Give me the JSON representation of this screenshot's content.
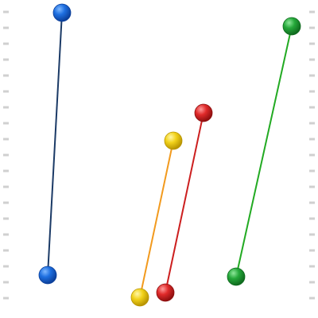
{
  "colors": {
    "background": "#ffffff",
    "edge_marks": "#d0d0d0",
    "blue": "#1e6fe0",
    "blue_line": "#1b3a66",
    "yellow": "#f2d21b",
    "yellow_line": "#f29a1e",
    "red": "#e02a2a",
    "red_line": "#cc1f1f",
    "green": "#25a83a",
    "green_line": "#22aa22"
  },
  "rods": [
    {
      "name": "blue-rod",
      "color": "blue"
    },
    {
      "name": "yellow-rod",
      "color": "yellow"
    },
    {
      "name": "red-rod",
      "color": "red"
    },
    {
      "name": "green-rod",
      "color": "green"
    }
  ]
}
